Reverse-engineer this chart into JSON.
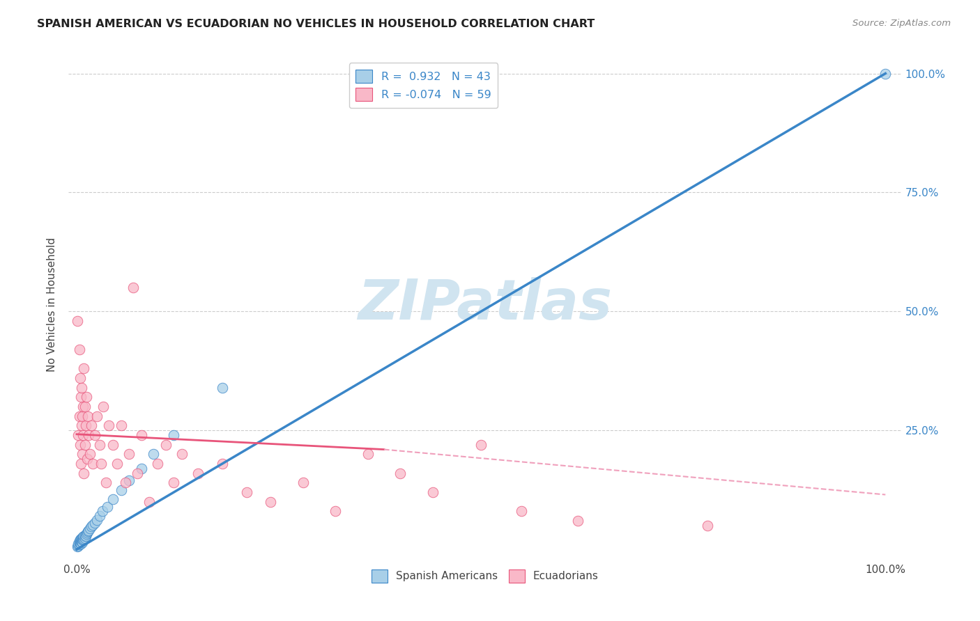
{
  "title": "SPANISH AMERICAN VS ECUADORIAN NO VEHICLES IN HOUSEHOLD CORRELATION CHART",
  "source": "Source: ZipAtlas.com",
  "ylabel": "No Vehicles in Household",
  "blue_R": 0.932,
  "blue_N": 43,
  "pink_R": -0.074,
  "pink_N": 59,
  "blue_color": "#a8cfe8",
  "pink_color": "#f9b8c8",
  "blue_line_color": "#3a86c8",
  "pink_line_color": "#e8547a",
  "pink_dashed_color": "#f0a0bc",
  "watermark_color": "#d0e4f0",
  "blue_line": [
    0.0,
    0.0,
    1.0,
    1.0
  ],
  "pink_solid_line": [
    0.0,
    0.242,
    0.38,
    0.21
  ],
  "pink_dash_line": [
    0.38,
    0.21,
    1.0,
    0.115
  ],
  "blue_points_x": [
    0.001,
    0.002,
    0.002,
    0.003,
    0.003,
    0.003,
    0.004,
    0.004,
    0.005,
    0.005,
    0.005,
    0.006,
    0.006,
    0.007,
    0.007,
    0.007,
    0.008,
    0.008,
    0.009,
    0.009,
    0.01,
    0.01,
    0.011,
    0.012,
    0.013,
    0.014,
    0.015,
    0.016,
    0.018,
    0.02,
    0.022,
    0.025,
    0.028,
    0.032,
    0.038,
    0.045,
    0.055,
    0.065,
    0.08,
    0.095,
    0.12,
    0.18,
    1.0
  ],
  "blue_points_y": [
    0.006,
    0.008,
    0.012,
    0.01,
    0.015,
    0.018,
    0.014,
    0.02,
    0.012,
    0.018,
    0.022,
    0.016,
    0.022,
    0.015,
    0.02,
    0.025,
    0.02,
    0.026,
    0.022,
    0.028,
    0.024,
    0.03,
    0.028,
    0.032,
    0.035,
    0.038,
    0.04,
    0.044,
    0.048,
    0.052,
    0.056,
    0.062,
    0.07,
    0.08,
    0.09,
    0.105,
    0.125,
    0.145,
    0.17,
    0.2,
    0.24,
    0.34,
    1.0
  ],
  "pink_points_x": [
    0.001,
    0.002,
    0.003,
    0.003,
    0.004,
    0.004,
    0.005,
    0.005,
    0.006,
    0.006,
    0.007,
    0.007,
    0.008,
    0.008,
    0.009,
    0.009,
    0.01,
    0.01,
    0.011,
    0.012,
    0.013,
    0.014,
    0.015,
    0.016,
    0.018,
    0.02,
    0.022,
    0.025,
    0.028,
    0.03,
    0.033,
    0.036,
    0.04,
    0.045,
    0.05,
    0.055,
    0.06,
    0.065,
    0.07,
    0.075,
    0.08,
    0.09,
    0.1,
    0.11,
    0.12,
    0.13,
    0.15,
    0.18,
    0.21,
    0.24,
    0.28,
    0.32,
    0.36,
    0.4,
    0.44,
    0.5,
    0.55,
    0.62,
    0.78
  ],
  "pink_points_y": [
    0.48,
    0.24,
    0.42,
    0.28,
    0.36,
    0.22,
    0.32,
    0.18,
    0.26,
    0.34,
    0.2,
    0.28,
    0.24,
    0.3,
    0.38,
    0.16,
    0.22,
    0.3,
    0.26,
    0.32,
    0.19,
    0.28,
    0.24,
    0.2,
    0.26,
    0.18,
    0.24,
    0.28,
    0.22,
    0.18,
    0.3,
    0.14,
    0.26,
    0.22,
    0.18,
    0.26,
    0.14,
    0.2,
    0.55,
    0.16,
    0.24,
    0.1,
    0.18,
    0.22,
    0.14,
    0.2,
    0.16,
    0.18,
    0.12,
    0.1,
    0.14,
    0.08,
    0.2,
    0.16,
    0.12,
    0.22,
    0.08,
    0.06,
    0.05
  ]
}
